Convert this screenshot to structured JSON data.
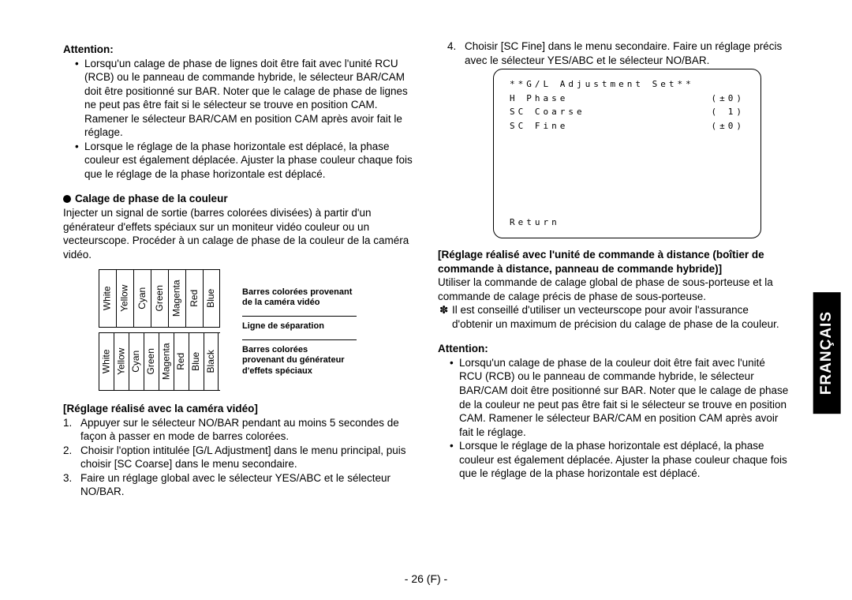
{
  "left": {
    "attention_label": "Attention:",
    "att_b1": "Lorsqu'un calage de phase de lignes doit être fait avec l'unité RCU (RCB) ou le panneau de commande hybride, le sélecteur BAR/CAM doit être positionné sur BAR. Noter que le calage de phase de lignes ne peut pas être fait si le sélecteur se trouve en position CAM. Ramener le sélecteur BAR/CAM en position CAM après avoir fait le réglage.",
    "att_b2": "Lorsque le réglage de la phase horizontale est déplacé, la phase couleur est également déplacée. Ajuster la phase couleur chaque fois que le réglage de la phase horizontale est déplacé.",
    "section_head": "Calage de phase de la couleur",
    "section_body": "Injecter un signal de sortie (barres colorées divisées) à partir d'un générateur d'effets spéciaux sur un moniteur vidéo couleur ou un vecteurscope. Procéder à un calage de phase de la couleur de la caméra vidéo.",
    "row1": [
      "White",
      "Yellow",
      "Cyan",
      "Green",
      "Magenta",
      "Red",
      "Blue"
    ],
    "row2": [
      "White",
      "Yellow",
      "Cyan",
      "Green",
      "Magenta",
      "Red",
      "Blue",
      "Black"
    ],
    "diag_label1a": "Barres colorées provenant",
    "diag_label1b": "de la caméra vidéo",
    "diag_label2": "Ligne de séparation",
    "diag_label3a": "Barres colorées",
    "diag_label3b": "provenant du générateur",
    "diag_label3c": "d'effets spéciaux",
    "subhead": "[Réglage réalisé avec la caméra vidéo]",
    "n1": "Appuyer sur le sélecteur NO/BAR pendant au moins 5 secondes de façon à passer en mode de barres colorées.",
    "n2": "Choisir l'option intitulée [G/L Adjustment] dans le menu principal, puis choisir [SC Coarse] dans le menu secondaire.",
    "n3": "Faire un réglage global avec le sélecteur YES/ABC et le sélecteur NO/BAR."
  },
  "right": {
    "n4": "Choisir [SC Fine] dans le menu secondaire. Faire un réglage précis avec le sélecteur YES/ABC et le sélecteur NO/BAR.",
    "menu_title": "**G/L Adjustment Set**",
    "menu_r1_l": " H Phase",
    "menu_r1_r": "(±0)",
    "menu_r2_l": " SC Coarse",
    "menu_r2_r": "( 1)",
    "menu_r3_l": " SC Fine",
    "menu_r3_r": "(±0)",
    "menu_return": " Return",
    "subhead": "[Réglage réalisé avec l'unité de commande à distance (boîtier de commande à distance, panneau de commande hybride)]",
    "body1": "Utiliser la commande de calage global de phase de sous-porteuse et la commande de calage précis de phase de sous-porteuse.",
    "tip": "Il est conseillé d'utiliser un vecteurscope pour avoir l'assurance d'obtenir un maximum de précision du calage de phase de la couleur.",
    "attention_label": "Attention:",
    "att_b1": "Lorsqu'un calage de phase de la couleur doit être fait avec l'unité RCU (RCB) ou le panneau de commande hybride, le sélecteur BAR/CAM doit être positionné sur BAR. Noter que le calage de phase de la couleur ne peut pas être fait si le sélecteur se trouve en position CAM. Ramener le sélecteur BAR/CAM en position CAM après avoir fait le réglage.",
    "att_b2": "Lorsque le réglage de la phase horizontale est déplacé, la phase couleur est également déplacée. Ajuster la phase couleur chaque fois que le réglage de la phase horizontale est déplacé."
  },
  "tab": "FRANÇAIS",
  "page": "- 26 (F) -"
}
